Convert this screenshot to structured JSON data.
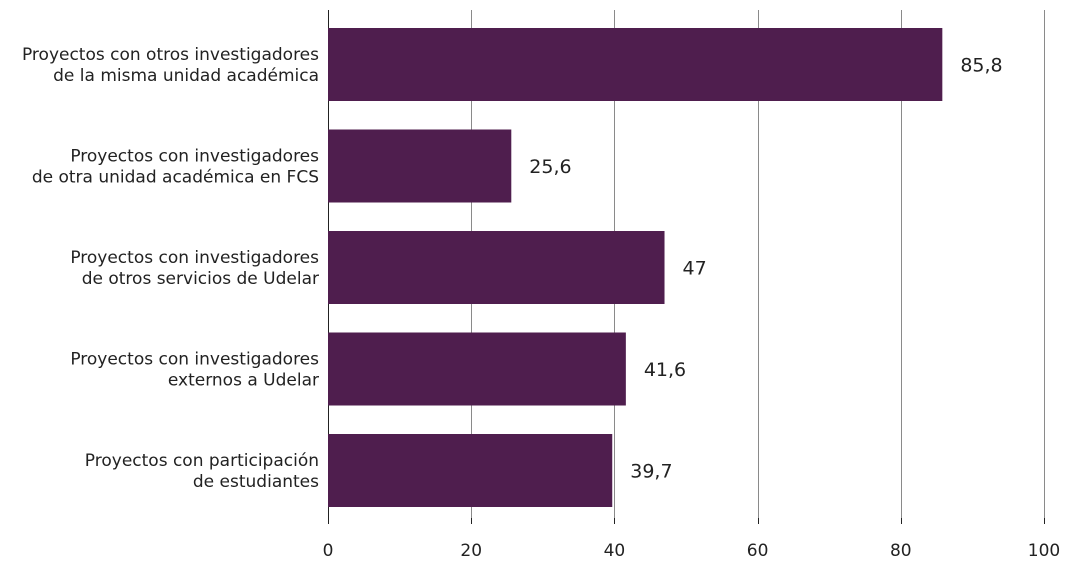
{
  "chart_data": {
    "type": "bar",
    "orientation": "horizontal",
    "categories": [
      [
        "Proyectos con otros investigadores",
        "de la misma unidad académica"
      ],
      [
        "Proyectos con investigadores",
        "de otra unidad académica en FCS"
      ],
      [
        "Proyectos con investigadores",
        "de otros servicios de Udelar"
      ],
      [
        "Proyectos con investigadores",
        "externos a Udelar"
      ],
      [
        "Proyectos con participación",
        "de estudiantes"
      ]
    ],
    "values": [
      85.8,
      25.6,
      47,
      41.6,
      39.7
    ],
    "value_labels": [
      "85,8",
      "25,6",
      "47",
      "41,6",
      "39,7"
    ],
    "xlim": [
      0,
      100
    ],
    "x_ticks": [
      0,
      20,
      40,
      60,
      80,
      100
    ],
    "x_tick_labels": [
      "0",
      "20",
      "40",
      "60",
      "80",
      "100"
    ],
    "grid": true,
    "bar_color": "#4f1e4e",
    "title": "",
    "xlabel": "",
    "ylabel": ""
  }
}
